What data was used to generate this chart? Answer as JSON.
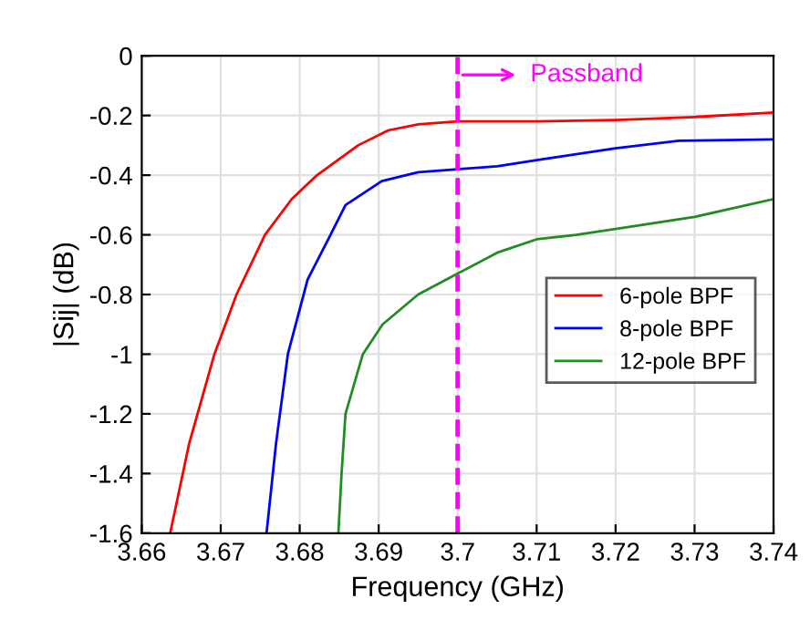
{
  "chart_data": {
    "type": "line",
    "xlabel": "Frequency (GHz)",
    "ylabel": "|Sij| (dB)",
    "xlim": [
      3.66,
      3.74
    ],
    "ylim": [
      -1.6,
      0
    ],
    "xticks": [
      3.66,
      3.67,
      3.68,
      3.69,
      3.7,
      3.71,
      3.72,
      3.73,
      3.74
    ],
    "yticks": [
      -1.6,
      -1.4,
      -1.2,
      -1,
      -0.8,
      -0.6,
      -0.4,
      -0.2,
      0
    ],
    "grid": true,
    "legend": "right",
    "line_style": "solid",
    "marker": "none",
    "series": [
      {
        "name": "6-pole BPF",
        "color": "#ff0000",
        "x": [
          3.6636,
          3.666,
          3.6692,
          3.672,
          3.6756,
          3.679,
          3.6822,
          3.6874,
          3.6912,
          3.695,
          3.7,
          3.71,
          3.72,
          3.73,
          3.74
        ],
        "values": [
          -1.6,
          -1.3,
          -1.0,
          -0.8,
          -0.6,
          -0.48,
          -0.4,
          -0.3,
          -0.25,
          -0.23,
          -0.22,
          -0.22,
          -0.215,
          -0.205,
          -0.19
        ]
      },
      {
        "name": "8-pole BPF",
        "color": "#0000ff",
        "x": [
          3.6758,
          3.677,
          3.6785,
          3.681,
          3.6839,
          3.6858,
          3.6904,
          3.695,
          3.7,
          3.705,
          3.71,
          3.72,
          3.728,
          3.74
        ],
        "values": [
          -1.6,
          -1.3,
          -1.0,
          -0.75,
          -0.6,
          -0.5,
          -0.42,
          -0.39,
          -0.38,
          -0.37,
          -0.35,
          -0.31,
          -0.285,
          -0.28
        ]
      },
      {
        "name": "12-pole BPF",
        "color": "#228b22",
        "x": [
          3.6849,
          3.6853,
          3.6858,
          3.688,
          3.6905,
          3.695,
          3.7,
          3.705,
          3.71,
          3.715,
          3.72,
          3.73,
          3.74
        ],
        "values": [
          -1.6,
          -1.4,
          -1.2,
          -1.0,
          -0.9,
          -0.8,
          -0.73,
          -0.66,
          -0.615,
          -0.6,
          -0.58,
          -0.54,
          -0.48
        ]
      }
    ],
    "ref_lines": [
      {
        "axis": "x",
        "value": 3.7,
        "label": "Passband",
        "color": "#ff00ff",
        "line_style": "dashed"
      }
    ]
  }
}
